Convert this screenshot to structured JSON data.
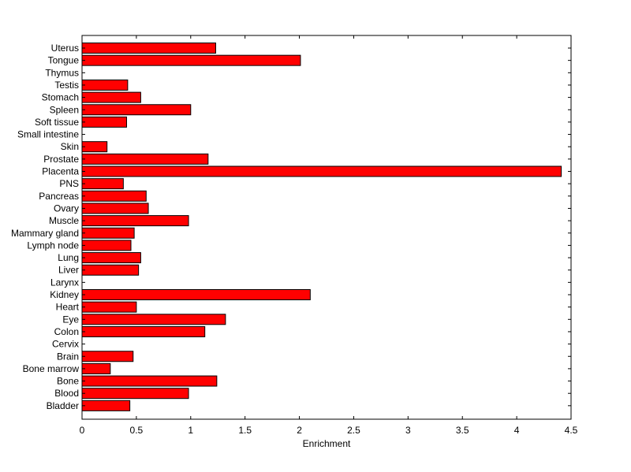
{
  "chart_data": {
    "type": "bar",
    "orientation": "horizontal",
    "title": "",
    "xlabel": "Enrichment",
    "ylabel": "",
    "xlim": [
      0,
      4.5
    ],
    "xticks": [
      "0",
      "0.5",
      "1",
      "1.5",
      "2",
      "2.5",
      "3",
      "3.5",
      "4",
      "4.5"
    ],
    "grid": false,
    "bar_color": "#ff0000",
    "categories": [
      "Uterus",
      "Tongue",
      "Thymus",
      "Testis",
      "Stomach",
      "Spleen",
      "Soft tissue",
      "Small intestine",
      "Skin",
      "Prostate",
      "Placenta",
      "PNS",
      "Pancreas",
      "Ovary",
      "Muscle",
      "Mammary gland",
      "Lymph node",
      "Lung",
      "Liver",
      "Larynx",
      "Kidney",
      "Heart",
      "Eye",
      "Colon",
      "Cervix",
      "Brain",
      "Bone marrow",
      "Bone",
      "Blood",
      "Bladder"
    ],
    "values": [
      1.23,
      2.01,
      0,
      0.42,
      0.54,
      1.0,
      0.41,
      0,
      0.23,
      1.16,
      4.41,
      0.38,
      0.59,
      0.61,
      0.98,
      0.48,
      0.45,
      0.54,
      0.52,
      0,
      2.1,
      0.5,
      1.32,
      1.13,
      0,
      0.47,
      0.26,
      1.24,
      0.98,
      0.44
    ]
  }
}
